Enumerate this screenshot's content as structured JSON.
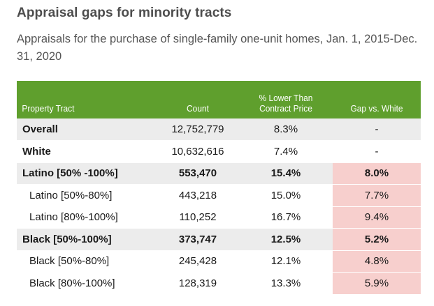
{
  "chart_data": {
    "type": "table",
    "title": "Appraisal gaps for minority tracts",
    "subtitle": "Appraisals for the purchase of single-family one-unit homes, Jan. 1, 2015-Dec. 31, 2020",
    "columns": [
      "Property Tract",
      "Count",
      "% Lower Than Contract Price",
      "Gap vs. White"
    ],
    "header_color": "#5f9f2d",
    "highlight_color": "#f7cfcd",
    "rows": [
      {
        "tract": "Overall",
        "count": "12,752,779",
        "pct_lower": "8.3%",
        "gap": "-",
        "style": "gray",
        "bold_label": true,
        "highlight": false
      },
      {
        "tract": "White",
        "count": "10,632,616",
        "pct_lower": "7.4%",
        "gap": "-",
        "style": "white",
        "bold_label": true,
        "highlight": false
      },
      {
        "tract": "Latino [50% -100%]",
        "count": "553,470",
        "pct_lower": "15.4%",
        "gap": "8.0%",
        "style": "gray",
        "bold_row": true,
        "highlight": true
      },
      {
        "tract": "Latino [50%-80%]",
        "count": "443,218",
        "pct_lower": "15.0%",
        "gap": "7.7%",
        "style": "sub",
        "highlight": true
      },
      {
        "tract": "Latino [80%-100%]",
        "count": "110,252",
        "pct_lower": "16.7%",
        "gap": "9.4%",
        "style": "sub",
        "highlight": true
      },
      {
        "tract": "Black [50%-100%]",
        "count": "373,747",
        "pct_lower": "12.5%",
        "gap": "5.2%",
        "style": "gray",
        "bold_row": true,
        "highlight": true
      },
      {
        "tract": "Black [50%-80%]",
        "count": "245,428",
        "pct_lower": "12.1%",
        "gap": "4.8%",
        "style": "sub",
        "highlight": true
      },
      {
        "tract": "Black [80%-100%]",
        "count": "128,319",
        "pct_lower": "13.3%",
        "gap": "5.9%",
        "style": "sub",
        "highlight": true
      }
    ]
  }
}
